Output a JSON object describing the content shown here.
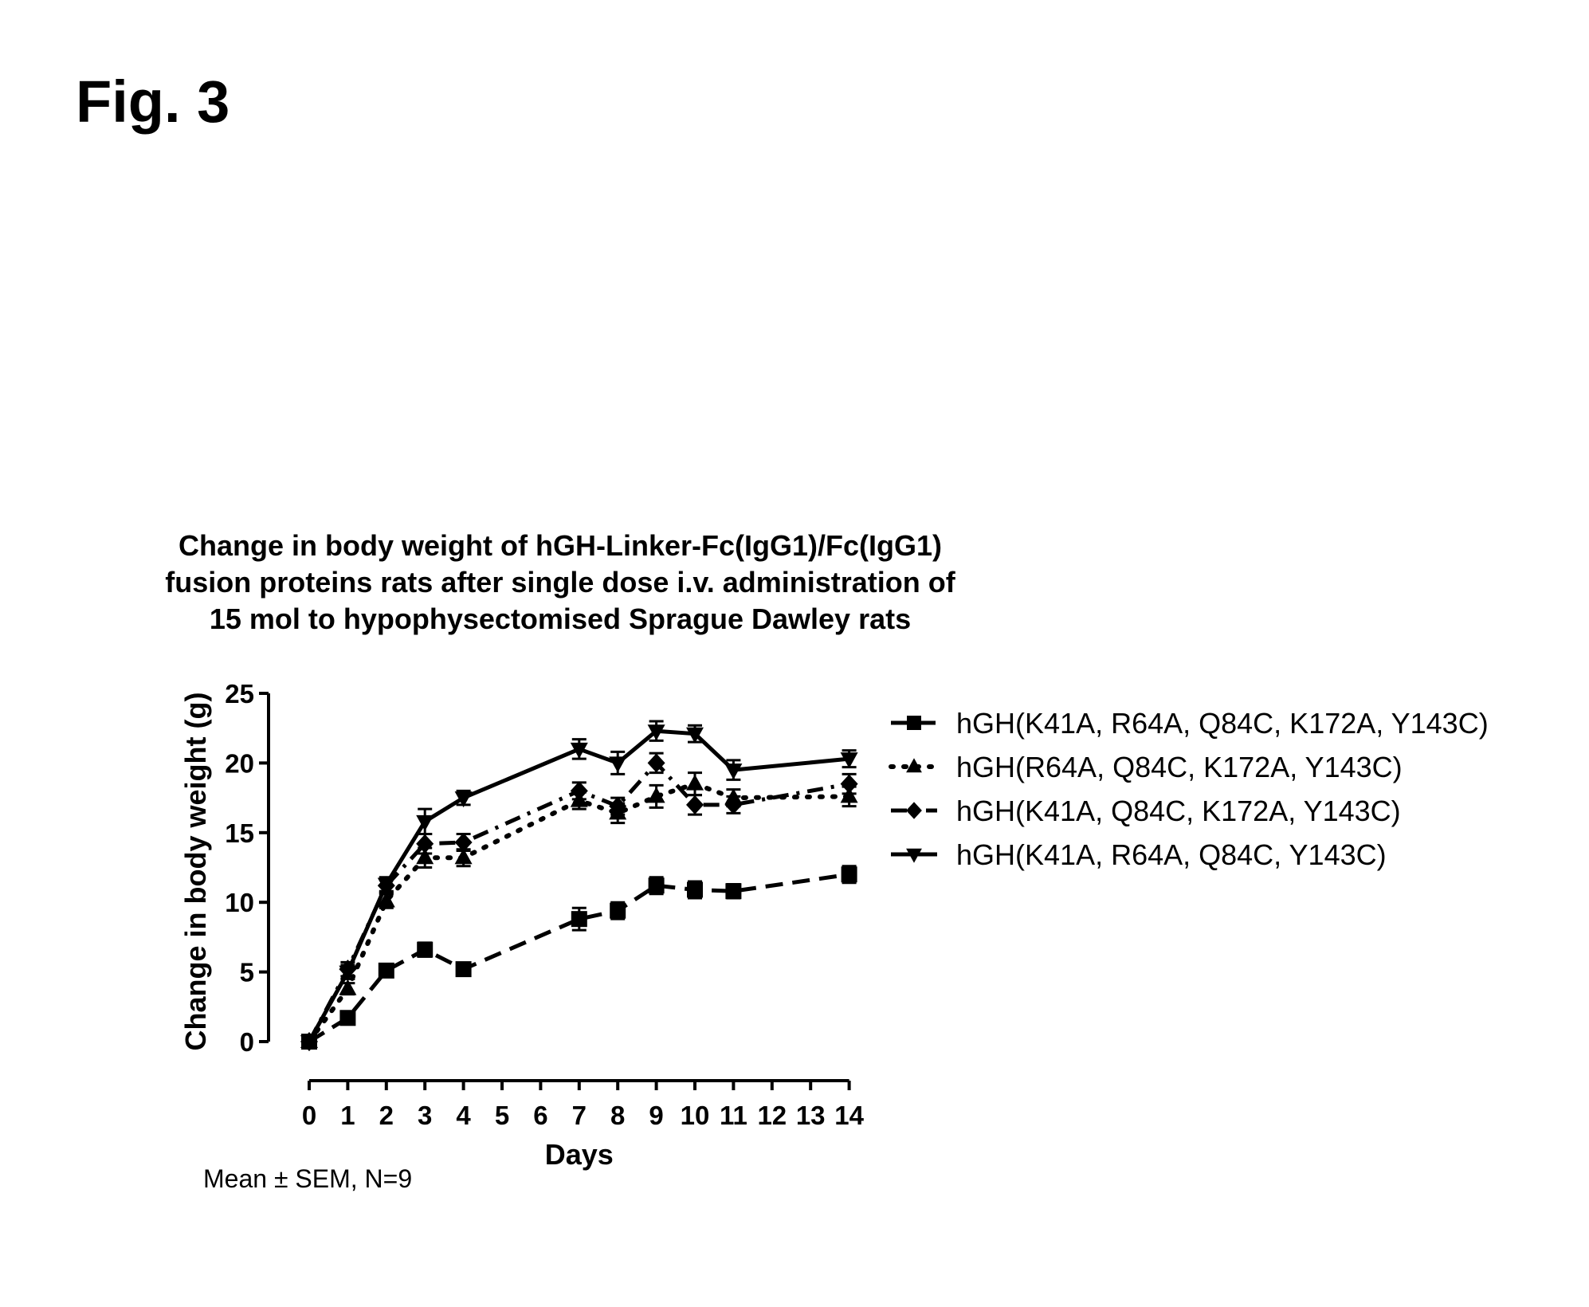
{
  "figure_label": "Fig. 3",
  "chart_data": {
    "type": "line",
    "title_lines": [
      "Change in body weight of hGH-Linker-Fc(IgG1)/Fc(IgG1)",
      "fusion proteins rats after single dose i.v. administration of",
      "15 mol to hypophysectomised Sprague Dawley rats"
    ],
    "xlabel": "Days",
    "ylabel": "Change in body weight (g)",
    "xlim": [
      0,
      14
    ],
    "ylim": [
      0,
      25
    ],
    "xticks": [
      0,
      1,
      2,
      3,
      4,
      5,
      6,
      7,
      8,
      9,
      10,
      11,
      12,
      13,
      14
    ],
    "yticks": [
      0,
      5,
      10,
      15,
      20,
      25
    ],
    "grid": false,
    "legend_position": "right",
    "footnote": "Mean ± SEM, N=9",
    "series": [
      {
        "name": "hGH(K41A, R64A, Q84C, K172A, Y143C)",
        "marker": "square",
        "line_style": "dashed",
        "color": "#000000",
        "x": [
          0,
          1,
          2,
          3,
          4,
          7,
          8,
          9,
          10,
          11,
          14
        ],
        "y": [
          0,
          1.7,
          5.1,
          6.6,
          5.2,
          8.8,
          9.4,
          11.2,
          10.9,
          10.8,
          12.0
        ],
        "err": [
          0.2,
          0.3,
          0.4,
          0.5,
          0.3,
          0.8,
          0.6,
          0.6,
          0.6,
          0.5,
          0.6
        ]
      },
      {
        "name": "hGH(R64A, Q84C, K172A, Y143C)",
        "marker": "triangle-up",
        "line_style": "dotted",
        "color": "#000000",
        "x": [
          0,
          1,
          2,
          3,
          4,
          7,
          8,
          9,
          10,
          11,
          14
        ],
        "y": [
          0,
          3.8,
          10.1,
          13.2,
          13.2,
          17.3,
          16.4,
          17.6,
          18.5,
          17.5,
          17.6
        ],
        "err": [
          0.2,
          0.4,
          0.5,
          0.7,
          0.6,
          0.6,
          0.7,
          0.8,
          0.8,
          0.6,
          0.7
        ]
      },
      {
        "name": "hGH(K41A, Q84C, K172A, Y143C)",
        "marker": "diamond",
        "line_style": "dash-dot",
        "color": "#000000",
        "x": [
          0,
          1,
          2,
          3,
          4,
          7,
          8,
          9,
          10,
          11,
          14
        ],
        "y": [
          0,
          5.2,
          11.2,
          14.2,
          14.3,
          18.0,
          16.9,
          20.0,
          17.0,
          17.0,
          18.5
        ],
        "err": [
          0.2,
          0.5,
          0.5,
          0.7,
          0.6,
          0.6,
          0.6,
          0.7,
          0.7,
          0.6,
          0.7
        ]
      },
      {
        "name": "hGH(K41A, R64A, Q84C, Y143C)",
        "marker": "triangle-down",
        "line_style": "solid",
        "color": "#000000",
        "x": [
          0,
          1,
          2,
          3,
          4,
          7,
          8,
          9,
          10,
          11,
          14
        ],
        "y": [
          0,
          5.0,
          11.3,
          15.8,
          17.5,
          21.0,
          20.0,
          22.3,
          22.1,
          19.5,
          20.3
        ],
        "err": [
          0.2,
          0.5,
          0.5,
          0.9,
          0.5,
          0.7,
          0.8,
          0.7,
          0.6,
          0.7,
          0.6
        ]
      }
    ]
  }
}
